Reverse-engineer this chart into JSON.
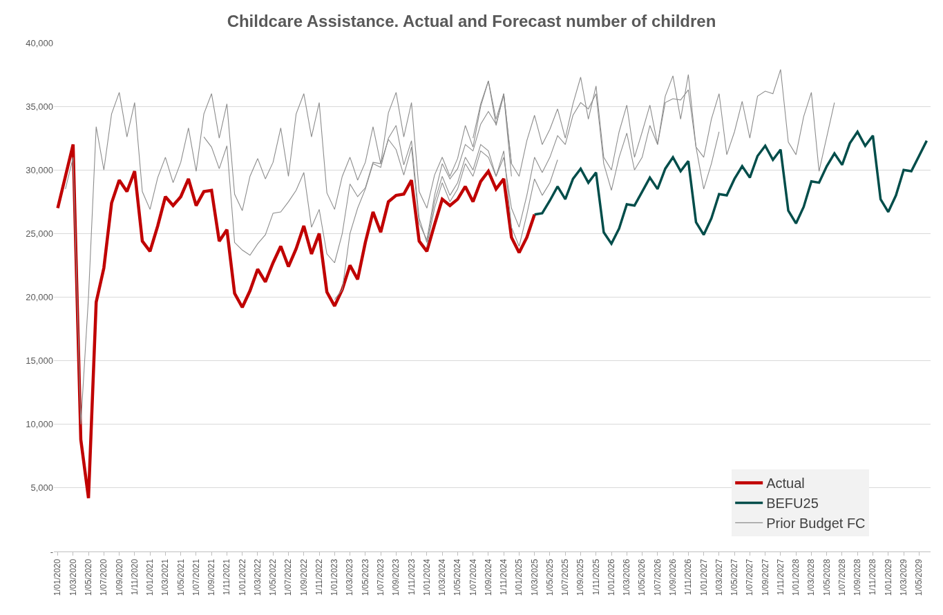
{
  "chart_data": {
    "type": "line",
    "title": "Childcare Assistance. Actual and Forecast number of children",
    "categories": [
      "1/01/2020",
      null,
      "1/03/2020",
      null,
      "1/05/2020",
      null,
      "1/07/2020",
      null,
      "1/09/2020",
      null,
      "1/11/2020",
      null,
      "1/01/2021",
      null,
      "1/03/2021",
      null,
      "1/05/2021",
      null,
      "1/07/2021",
      null,
      "1/09/2021",
      null,
      "1/11/2021",
      null,
      "1/01/2022",
      null,
      "1/03/2022",
      null,
      "1/05/2022",
      null,
      "1/07/2022",
      null,
      "1/09/2022",
      null,
      "1/11/2022",
      null,
      "1/01/2023",
      null,
      "1/03/2023",
      null,
      "1/05/2023",
      null,
      "1/07/2023",
      null,
      "1/09/2023",
      null,
      "1/11/2023",
      null,
      "1/01/2024",
      null,
      "1/03/2024",
      null,
      "1/05/2024",
      null,
      "1/07/2024",
      null,
      "1/09/2024",
      null,
      "1/11/2024",
      null,
      "1/01/2025",
      null,
      "1/03/2025",
      null,
      "1/05/2025",
      null,
      "1/07/2025",
      null,
      "1/09/2025",
      null,
      "1/11/2025",
      null,
      "1/01/2026",
      null,
      "1/03/2026",
      null,
      "1/05/2026",
      null,
      "1/07/2026",
      null,
      "1/09/2026",
      null,
      "1/11/2026",
      null,
      "1/01/2027",
      null,
      "1/03/2027",
      null,
      "1/05/2027",
      null,
      "1/07/2027",
      null,
      "1/09/2027",
      null,
      "1/11/2027",
      null,
      "1/01/2028",
      null,
      "1/03/2028",
      null,
      "1/05/2028",
      null,
      "1/07/2028",
      null,
      "1/09/2028",
      null,
      "1/11/2028",
      null,
      "1/01/2029",
      null,
      "1/03/2029",
      null,
      "1/05/2029",
      null
    ],
    "series": [
      {
        "name": "Actual",
        "color": "#c00000",
        "values": [
          27000,
          29500,
          32000,
          8800,
          4200,
          19600,
          22300,
          27400,
          29200,
          28300,
          29900,
          24400,
          23600,
          25600,
          27900,
          27200,
          27900,
          29300,
          27200,
          28300,
          28400,
          24400,
          25300,
          20300,
          19200,
          20500,
          22200,
          21200,
          22700,
          24000,
          22400,
          23800,
          25600,
          23400,
          25000,
          20400,
          19300,
          20600,
          22500,
          21400,
          24300,
          26700,
          25100,
          27500,
          28000,
          28100,
          29200,
          24400,
          23600,
          25700,
          27700,
          27200,
          27700,
          28700,
          27500,
          29100,
          29900,
          28500,
          29300,
          24700,
          23500,
          24700,
          26500,
          null,
          null,
          null,
          null,
          null,
          null,
          null,
          null,
          null,
          null,
          null,
          null,
          null,
          null,
          null,
          null,
          null,
          null,
          null,
          null,
          null,
          null,
          null,
          null,
          null,
          null,
          null,
          null,
          null,
          null,
          null,
          null,
          null,
          null,
          null,
          null,
          null,
          null,
          null,
          null,
          null,
          null,
          null,
          null,
          null,
          null,
          null,
          null,
          null,
          null,
          null
        ]
      },
      {
        "name": "BEFU25",
        "color": "#004d4a",
        "values": [
          null,
          null,
          null,
          null,
          null,
          null,
          null,
          null,
          null,
          null,
          null,
          null,
          null,
          null,
          null,
          null,
          null,
          null,
          null,
          null,
          null,
          null,
          null,
          null,
          null,
          null,
          null,
          null,
          null,
          null,
          null,
          null,
          null,
          null,
          null,
          null,
          null,
          null,
          null,
          null,
          null,
          null,
          null,
          null,
          null,
          null,
          null,
          null,
          null,
          null,
          null,
          null,
          null,
          null,
          null,
          null,
          null,
          null,
          null,
          null,
          null,
          null,
          26500,
          26600,
          27600,
          28700,
          27700,
          29300,
          30100,
          29000,
          29800,
          25100,
          24200,
          25400,
          27300,
          27200,
          28300,
          29400,
          28500,
          30100,
          31000,
          29900,
          30700,
          25900,
          24900,
          26200,
          28100,
          28000,
          29300,
          30300,
          29400,
          31100,
          31900,
          30800,
          31600,
          26800,
          25800,
          27100,
          29100,
          29000,
          30300,
          31300,
          30400,
          32100,
          33000,
          31900,
          32700,
          27700,
          26700,
          28000,
          30000,
          29900,
          31100,
          32300
        ]
      },
      {
        "name": "Prior Budget FC",
        "color": "#8c8c8c",
        "values": [
          null,
          28500,
          31000,
          10000,
          20000,
          33400,
          30000,
          34400,
          36100,
          32600,
          35300,
          28300,
          26900,
          29400,
          31000,
          29000,
          30600,
          33300,
          29900,
          34400,
          36000,
          32500,
          35200,
          28100,
          26800,
          29500,
          30900,
          29300,
          30600,
          33300,
          29500,
          34400,
          36000,
          32600,
          35300,
          28200,
          26900,
          29500,
          31000,
          29200,
          30600,
          33400,
          30500,
          34500,
          36100,
          32600,
          35300,
          28300,
          27000,
          29600,
          31000,
          29500,
          30900,
          33500,
          31800,
          35000,
          37000,
          33500,
          36000,
          30500,
          null,
          null,
          null,
          null,
          null,
          null,
          null,
          null,
          null,
          null,
          null,
          null,
          null,
          null,
          null,
          null,
          null,
          null,
          null,
          null,
          null,
          null,
          null,
          null,
          null,
          null,
          null,
          null,
          null,
          null,
          null,
          null,
          null,
          null,
          null,
          null,
          null,
          null,
          null,
          null,
          null,
          null,
          null,
          null,
          null,
          null,
          null,
          null,
          null,
          null,
          null,
          null,
          null,
          null
        ]
      },
      {
        "color": "#8c8c8c",
        "values": [
          null,
          null,
          null,
          null,
          null,
          null,
          null,
          null,
          null,
          null,
          null,
          null,
          null,
          null,
          null,
          null,
          null,
          null,
          null,
          32600,
          31800,
          30100,
          31900,
          24300,
          23700,
          23300,
          24200,
          24900,
          26600,
          26700,
          27500,
          28400,
          29800,
          25500,
          26900,
          23400,
          22700,
          25000,
          28900,
          27900,
          28600,
          30600,
          30500,
          32400,
          31600,
          29600,
          31800,
          25800,
          24500,
          28000,
          30500,
          29300,
          30100,
          32000,
          31500,
          33600,
          34600,
          33600,
          35900,
          29500,
          null,
          null,
          null,
          null,
          null,
          null,
          null,
          null,
          null,
          null,
          null,
          null,
          null,
          null,
          null,
          null,
          null,
          null,
          null,
          null,
          null,
          null,
          null,
          null,
          null,
          null,
          null,
          null,
          null,
          null,
          null,
          null,
          null,
          null,
          null,
          null,
          null,
          null,
          null,
          null,
          null,
          null,
          null,
          null,
          null,
          null,
          null,
          null,
          null,
          null,
          null,
          null,
          null,
          null
        ]
      },
      {
        "color": "#8c8c8c",
        "values": [
          null,
          null,
          null,
          null,
          null,
          null,
          null,
          null,
          null,
          null,
          null,
          null,
          null,
          null,
          null,
          null,
          null,
          null,
          null,
          null,
          null,
          null,
          null,
          null,
          null,
          null,
          null,
          null,
          null,
          null,
          null,
          null,
          null,
          null,
          null,
          null,
          19800,
          20600,
          25000,
          27000,
          28500,
          30500,
          30200,
          32500,
          33500,
          30400,
          32300,
          26200,
          24300,
          27500,
          29500,
          28000,
          29000,
          31000,
          30000,
          32000,
          31500,
          29500,
          31500,
          25500,
          24000,
          26500,
          29300,
          28000,
          29000,
          30800,
          null,
          null,
          null,
          null,
          null,
          null,
          null,
          null,
          null,
          null,
          null,
          null,
          null,
          null,
          null,
          null,
          null,
          null,
          null,
          null,
          null,
          null,
          null,
          null,
          null,
          null,
          null,
          null,
          null,
          null,
          null,
          null,
          null,
          null,
          null,
          null,
          null,
          null,
          null,
          null,
          null,
          null,
          null,
          null,
          null,
          null,
          null,
          null
        ]
      },
      {
        "color": "#8c8c8c",
        "values": [
          null,
          null,
          null,
          null,
          null,
          null,
          null,
          null,
          null,
          null,
          null,
          null,
          null,
          null,
          null,
          null,
          null,
          null,
          null,
          null,
          null,
          null,
          null,
          null,
          null,
          null,
          null,
          null,
          null,
          null,
          null,
          null,
          null,
          null,
          null,
          null,
          null,
          null,
          null,
          null,
          null,
          null,
          null,
          null,
          null,
          null,
          null,
          null,
          24000,
          27000,
          29000,
          27500,
          28500,
          30500,
          29500,
          31500,
          31000,
          29500,
          31000,
          27000,
          25500,
          28000,
          31000,
          29800,
          31000,
          32700,
          32000,
          34300,
          35300,
          34800,
          36000,
          30500,
          28400,
          31000,
          32900,
          30000,
          31000,
          33500,
          32000,
          35300,
          35600,
          35500,
          36300,
          31800,
          28500,
          30500,
          33000,
          null,
          null,
          null,
          null,
          null,
          null,
          null,
          null,
          null,
          null,
          null,
          null,
          null,
          null,
          null,
          null,
          null,
          null,
          null,
          null,
          null,
          null,
          null,
          null,
          null,
          null,
          null
        ]
      },
      {
        "color": "#8c8c8c",
        "values": [
          null,
          null,
          null,
          null,
          null,
          null,
          null,
          null,
          null,
          null,
          null,
          null,
          null,
          null,
          null,
          null,
          null,
          null,
          null,
          null,
          null,
          null,
          null,
          null,
          null,
          null,
          null,
          null,
          null,
          null,
          null,
          null,
          null,
          null,
          null,
          null,
          null,
          null,
          null,
          null,
          null,
          null,
          null,
          null,
          null,
          null,
          null,
          null,
          null,
          null,
          null,
          null,
          null,
          null,
          32500,
          35200,
          37000,
          34000,
          36000,
          30500,
          29500,
          32300,
          34300,
          32000,
          33200,
          34800,
          32500,
          35200,
          37300,
          34000,
          36600,
          31000,
          30000,
          33000,
          35100,
          31000,
          33000,
          35100,
          32000,
          35800,
          37400,
          34000,
          37500,
          31800,
          31000,
          34000,
          36000,
          31200,
          33000,
          35400,
          32500,
          35800,
          36200,
          36000,
          37900,
          32200,
          31200,
          34200,
          36100,
          29900,
          32600,
          35300,
          null,
          null,
          null,
          null,
          null,
          null,
          null,
          null,
          null,
          null,
          null,
          null
        ]
      }
    ],
    "ylim": [
      0,
      40000
    ],
    "yticks": [
      {
        "value": 0,
        "label": "-"
      },
      {
        "value": 5000,
        "label": "5,000"
      },
      {
        "value": 10000,
        "label": "10,000"
      },
      {
        "value": 15000,
        "label": "15,000"
      },
      {
        "value": 20000,
        "label": "20,000"
      },
      {
        "value": 25000,
        "label": "25,000"
      },
      {
        "value": 30000,
        "label": "30,000"
      },
      {
        "value": 35000,
        "label": "35,000"
      },
      {
        "value": 40000,
        "label": "40,000"
      }
    ],
    "grid": "y",
    "legend": "bottom right",
    "marker": "none",
    "line_style": "solid"
  }
}
